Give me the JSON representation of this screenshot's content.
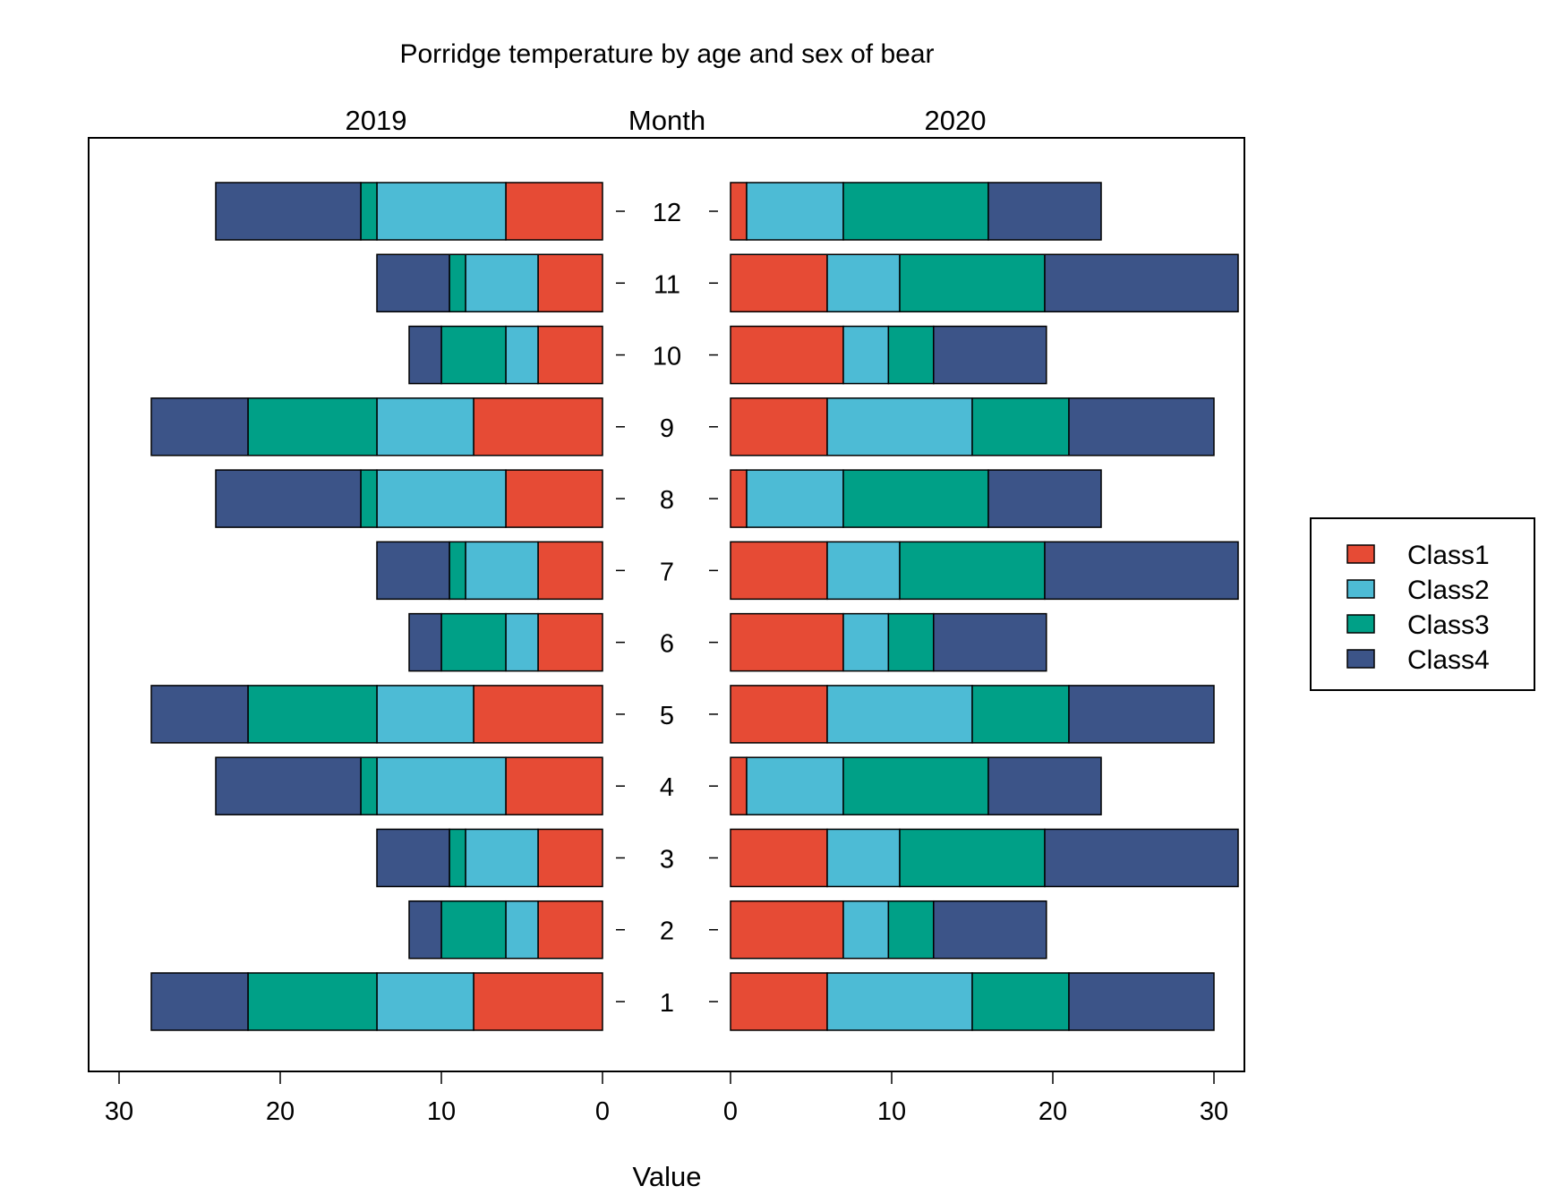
{
  "chart_data": {
    "type": "bar",
    "orientation": "horizontal",
    "stacked": true,
    "title": "Porridge temperature by age and sex of bear",
    "category_label": "Month",
    "xlabel": "Value",
    "categories": [
      "1",
      "2",
      "3",
      "4",
      "5",
      "6",
      "7",
      "8",
      "9",
      "10",
      "11",
      "12"
    ],
    "xlim": [
      0,
      32
    ],
    "xticks": [
      0,
      10,
      20,
      30
    ],
    "grid": false,
    "legend": {
      "position": "right",
      "entries": [
        "Class1",
        "Class2",
        "Class3",
        "Class4"
      ]
    },
    "colors": {
      "Class1": "#E64B35",
      "Class2": "#4DBBD5",
      "Class3": "#00A087",
      "Class4": "#3C5488"
    },
    "panels": [
      {
        "name": "2019",
        "direction": "left",
        "series": [
          {
            "name": "Class1",
            "values": [
              8,
              4,
              4,
              6,
              8,
              4,
              4,
              6,
              8,
              4,
              4,
              6
            ]
          },
          {
            "name": "Class2",
            "values": [
              6,
              2,
              4.5,
              8,
              6,
              2,
              4.5,
              8,
              6,
              2,
              4.5,
              8
            ]
          },
          {
            "name": "Class3",
            "values": [
              8,
              4,
              1,
              1,
              8,
              4,
              1,
              1,
              8,
              4,
              1,
              1
            ]
          },
          {
            "name": "Class4",
            "values": [
              6,
              2,
              4.5,
              9,
              6,
              2,
              4.5,
              9,
              6,
              2,
              4.5,
              9
            ]
          }
        ]
      },
      {
        "name": "2020",
        "direction": "right",
        "series": [
          {
            "name": "Class1",
            "values": [
              6,
              7,
              6,
              1,
              6,
              7,
              6,
              1,
              6,
              7,
              6,
              1
            ]
          },
          {
            "name": "Class2",
            "values": [
              9,
              2.8,
              4.5,
              6,
              9,
              2.8,
              4.5,
              6,
              9,
              2.8,
              4.5,
              6
            ]
          },
          {
            "name": "Class3",
            "values": [
              6,
              2.8,
              9,
              9,
              6,
              2.8,
              9,
              9,
              6,
              2.8,
              9,
              9
            ]
          },
          {
            "name": "Class4",
            "values": [
              9,
              7,
              12,
              7,
              9,
              7,
              12,
              7,
              9,
              7,
              12,
              7
            ]
          }
        ]
      }
    ]
  }
}
